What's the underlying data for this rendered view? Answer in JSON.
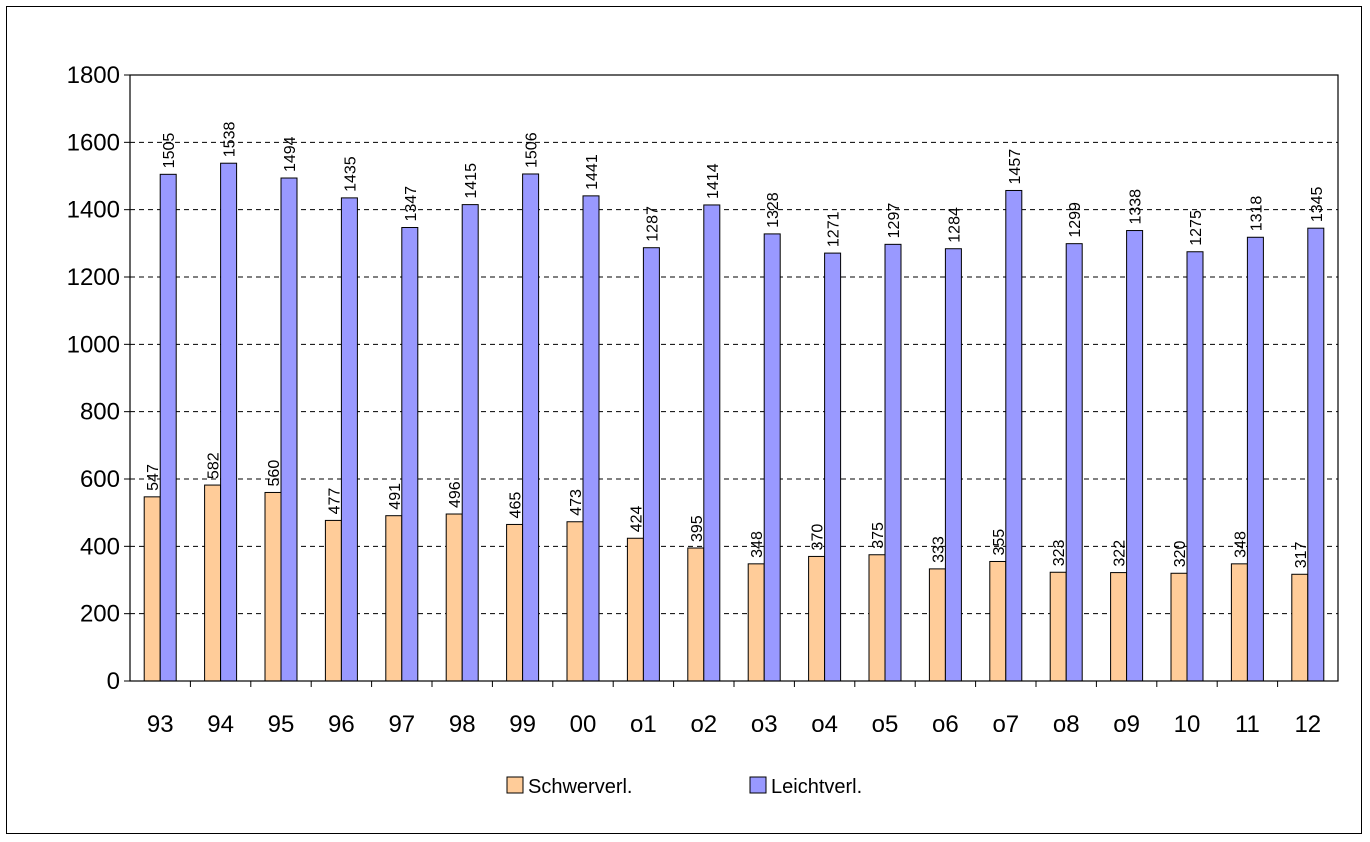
{
  "chart_data": {
    "type": "bar",
    "title": "",
    "xlabel": "",
    "ylabel": "",
    "categories": [
      "93",
      "94",
      "95",
      "96",
      "97",
      "98",
      "99",
      "00",
      "o1",
      "o2",
      "o3",
      "o4",
      "o5",
      "o6",
      "o7",
      "o8",
      "o9",
      "10",
      "11",
      "12"
    ],
    "series": [
      {
        "name": "Schwerverl.",
        "color": "#ffcc99",
        "values": [
          547,
          582,
          560,
          477,
          491,
          496,
          465,
          473,
          424,
          395,
          348,
          370,
          375,
          333,
          355,
          323,
          322,
          320,
          348,
          317
        ]
      },
      {
        "name": "Leichtverl.",
        "color": "#9999ff",
        "values": [
          1505,
          1538,
          1494,
          1435,
          1347,
          1415,
          1506,
          1441,
          1287,
          1414,
          1328,
          1271,
          1297,
          1284,
          1457,
          1299,
          1338,
          1275,
          1318,
          1345
        ]
      }
    ],
    "ylim": [
      0,
      1800
    ],
    "yticks": [
      0,
      200,
      400,
      600,
      800,
      1000,
      1200,
      1400,
      1600,
      1800
    ],
    "grid": true,
    "legend_position": "bottom"
  }
}
